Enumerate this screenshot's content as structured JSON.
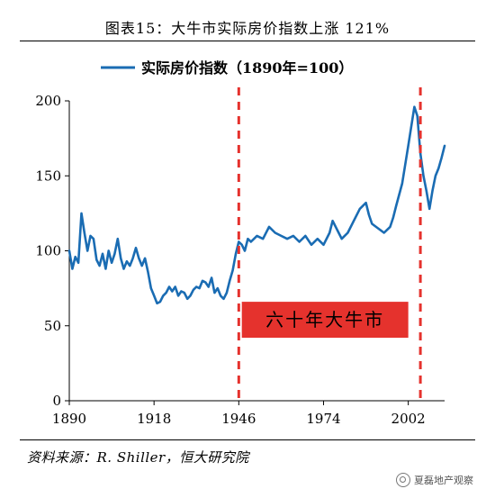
{
  "title": "图表15：大牛市实际房价指数上涨 121%",
  "source": "资料来源：R. Shiller，恒大研究院",
  "watermark": "夏磊地产观察",
  "chart_data": {
    "type": "line",
    "title": "图表15：大牛市实际房价指数上涨 121%",
    "xlabel": "",
    "ylabel": "",
    "xlim": [
      1890,
      2014
    ],
    "ylim": [
      0,
      200
    ],
    "x_ticks": [
      1890,
      1918,
      1946,
      1974,
      2002
    ],
    "y_ticks": [
      0,
      50,
      100,
      150,
      200
    ],
    "grid": false,
    "legend_position": "top-center",
    "series": [
      {
        "name": "实际房价指数（1890年=100）",
        "color": "#1a6cb3",
        "x": [
          1890,
          1891,
          1892,
          1893,
          1894,
          1895,
          1896,
          1897,
          1898,
          1899,
          1900,
          1901,
          1902,
          1903,
          1904,
          1905,
          1906,
          1907,
          1908,
          1909,
          1910,
          1911,
          1912,
          1913,
          1914,
          1915,
          1916,
          1917,
          1918,
          1919,
          1920,
          1921,
          1922,
          1923,
          1924,
          1925,
          1926,
          1927,
          1928,
          1929,
          1930,
          1931,
          1932,
          1933,
          1934,
          1935,
          1936,
          1937,
          1938,
          1939,
          1940,
          1941,
          1942,
          1943,
          1944,
          1945,
          1946,
          1947,
          1948,
          1949,
          1950,
          1952,
          1954,
          1956,
          1958,
          1960,
          1962,
          1964,
          1966,
          1968,
          1970,
          1972,
          1974,
          1976,
          1977,
          1979,
          1980,
          1982,
          1984,
          1986,
          1988,
          1989,
          1990,
          1992,
          1994,
          1996,
          1997,
          1998,
          2000,
          2002,
          2004,
          2005,
          2006,
          2007,
          2008,
          2009,
          2010,
          2011,
          2012,
          2013,
          2014
        ],
        "values": [
          100,
          88,
          96,
          92,
          125,
          112,
          100,
          110,
          108,
          94,
          90,
          98,
          88,
          100,
          92,
          98,
          108,
          95,
          88,
          93,
          90,
          95,
          102,
          95,
          90,
          95,
          86,
          75,
          70,
          65,
          66,
          70,
          72,
          76,
          73,
          76,
          70,
          73,
          72,
          68,
          70,
          74,
          76,
          75,
          80,
          79,
          76,
          82,
          72,
          75,
          70,
          68,
          72,
          80,
          87,
          98,
          106,
          104,
          100,
          108,
          106,
          110,
          108,
          116,
          112,
          110,
          108,
          110,
          106,
          110,
          104,
          108,
          104,
          112,
          120,
          112,
          108,
          112,
          120,
          128,
          132,
          124,
          118,
          115,
          112,
          116,
          122,
          130,
          145,
          170,
          196,
          190,
          165,
          150,
          140,
          128,
          140,
          150,
          155,
          162,
          170
        ]
      }
    ],
    "annotations": [
      {
        "type": "vline",
        "x": 1946,
        "color": "#e5322d",
        "style": "dashed"
      },
      {
        "type": "vline",
        "x": 2006,
        "color": "#e5322d",
        "style": "dashed"
      },
      {
        "type": "label",
        "text": "六十年大牛市",
        "x_from": 1947,
        "x_to": 2002,
        "y_from": 42,
        "y_to": 66,
        "background": "#e5322d"
      }
    ]
  }
}
